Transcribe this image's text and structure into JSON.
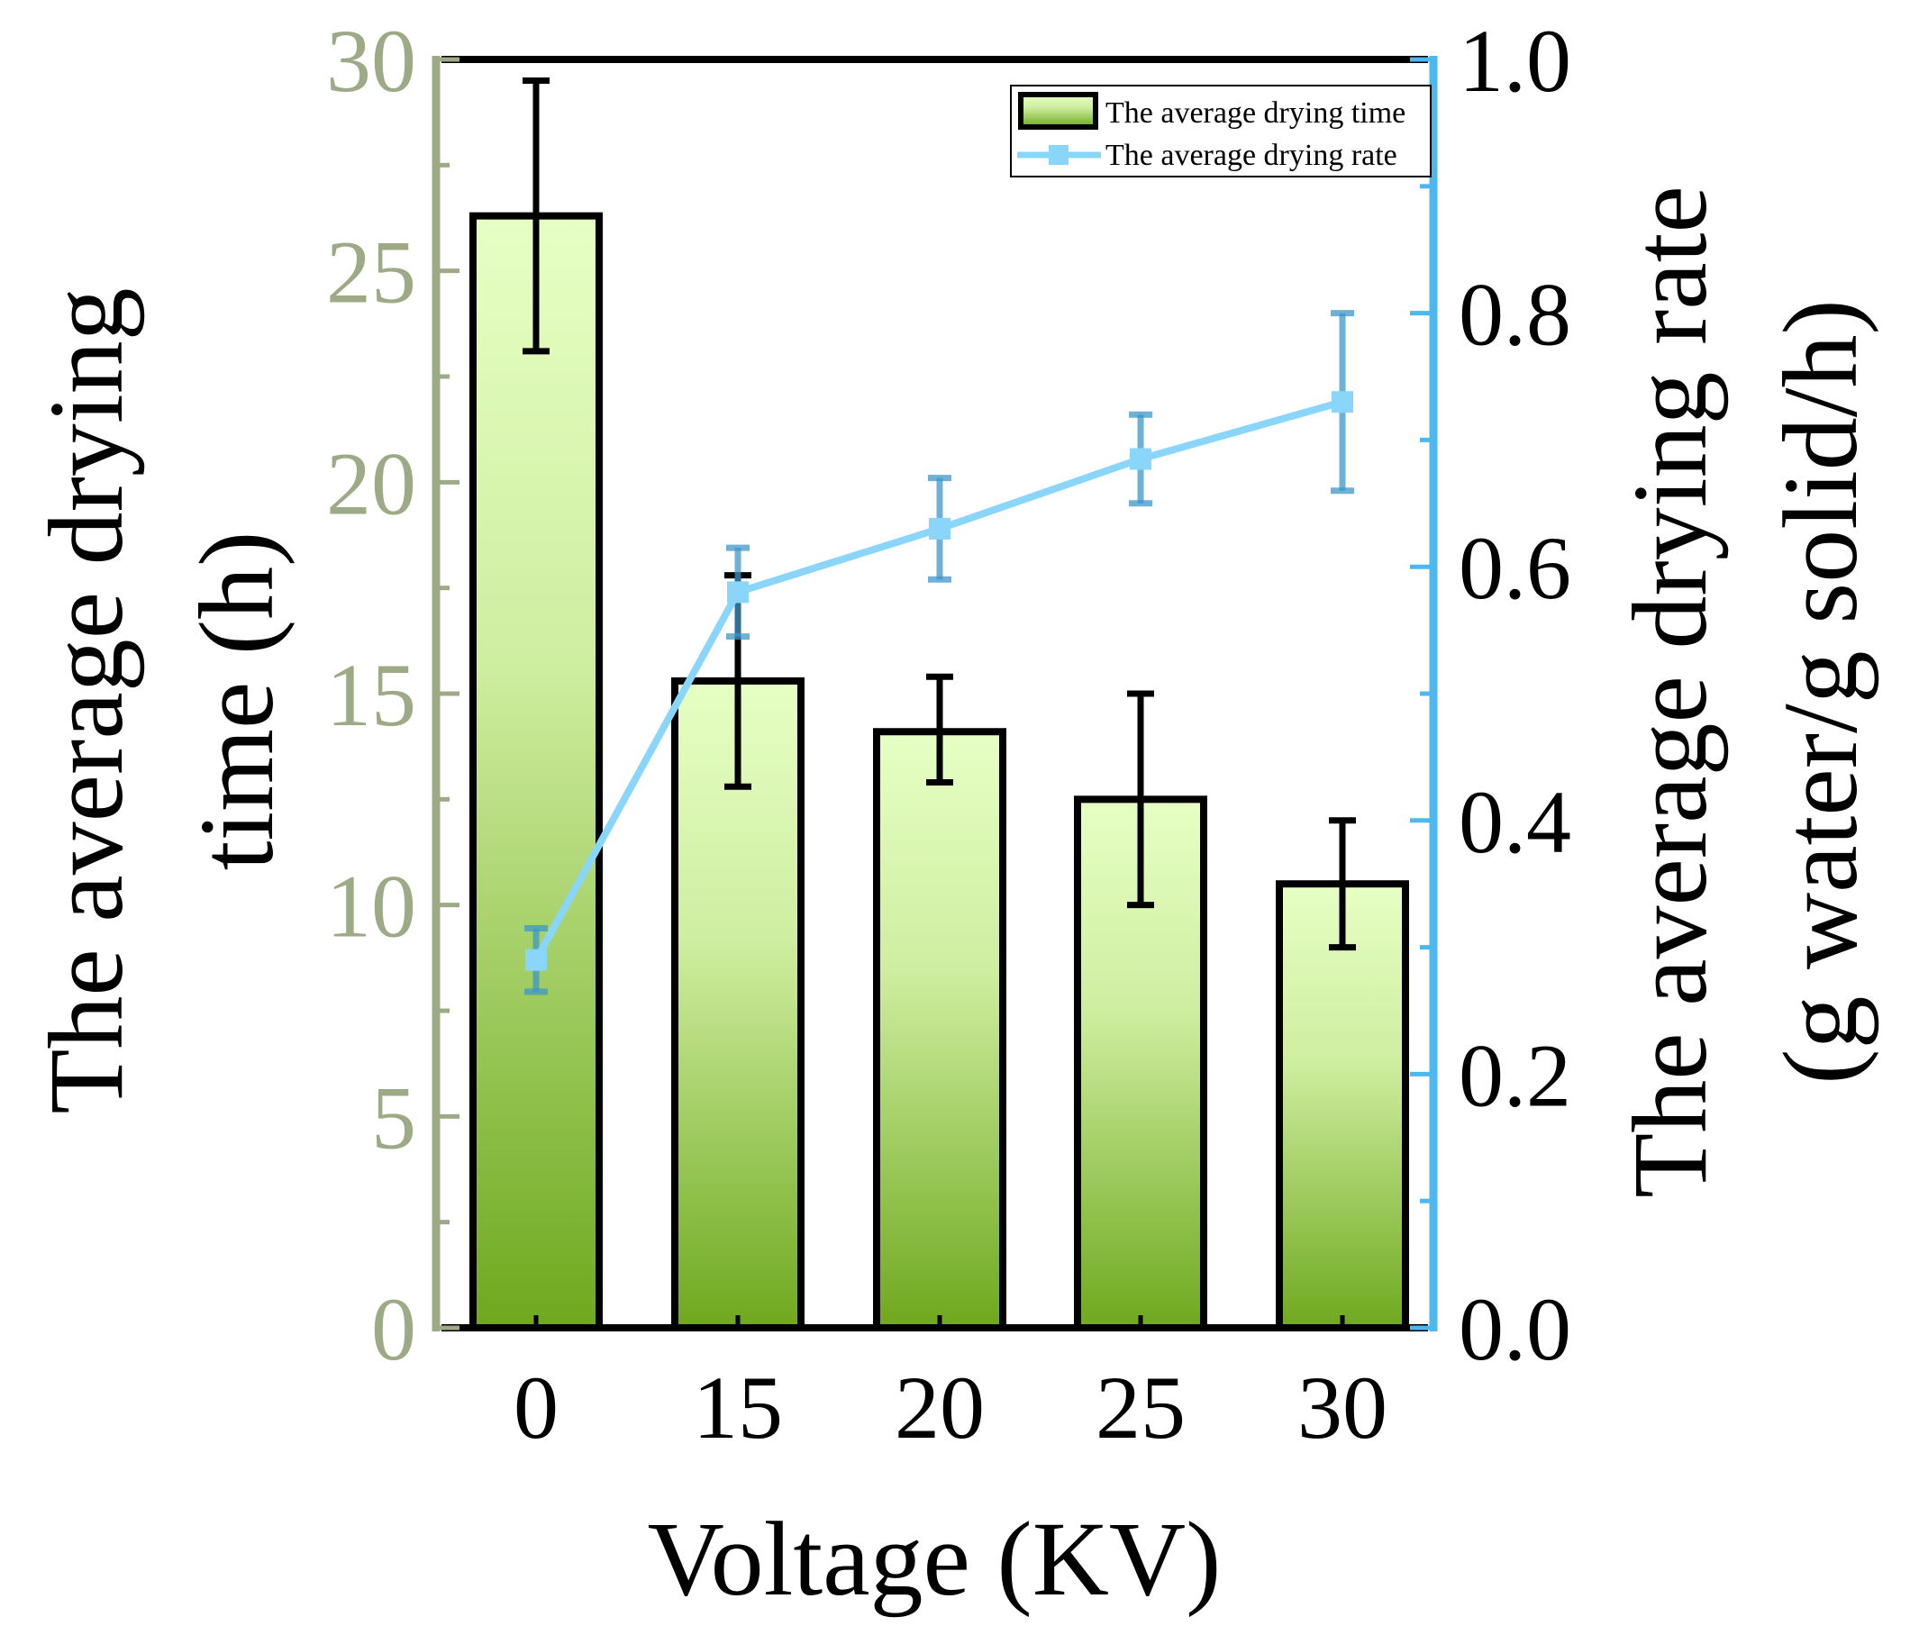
{
  "chart_data": {
    "type": "bar+line",
    "xlabel": "Voltage (KV)",
    "categories": [
      "0",
      "15",
      "20",
      "25",
      "30"
    ],
    "left_axis": {
      "label_line1": "The average drying",
      "label_line2": "time (h)",
      "ylim": [
        0,
        30
      ],
      "ticks": [
        "0",
        "5",
        "10",
        "15",
        "20",
        "25",
        "30"
      ],
      "color": "#9cab86"
    },
    "right_axis": {
      "label_line1": "The average drying rate",
      "label_line2": "(g water/g solid/h)",
      "ylim": [
        0,
        1.0
      ],
      "ticks": [
        "0.0",
        "0.2",
        "0.4",
        "0.6",
        "0.8",
        "1.0"
      ],
      "color": "#4db8f0"
    },
    "series": [
      {
        "name": "The average drying time",
        "kind": "bar",
        "axis": "left",
        "values": [
          26.3,
          15.3,
          14.1,
          12.5,
          10.5
        ],
        "error_low": [
          23.1,
          12.8,
          12.9,
          10.0,
          9.0
        ],
        "error_high": [
          29.5,
          17.8,
          15.4,
          15.0,
          12.0
        ],
        "fill_top": "#e6ffc4",
        "fill_bottom": "#6ea81e"
      },
      {
        "name": "The average drying rate",
        "kind": "line",
        "axis": "right",
        "values": [
          0.29,
          0.58,
          0.63,
          0.685,
          0.73
        ],
        "error_low": [
          0.265,
          0.545,
          0.59,
          0.65,
          0.66
        ],
        "error_high": [
          0.315,
          0.615,
          0.67,
          0.72,
          0.8
        ],
        "line_color": "#8ad6fb",
        "errorbar_color": "#3c97c8"
      }
    ],
    "legend": "top-right"
  }
}
